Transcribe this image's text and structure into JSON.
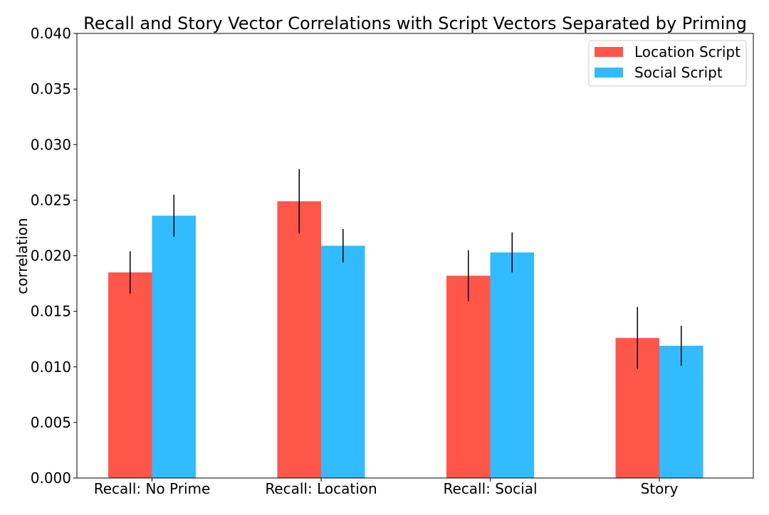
{
  "chart_data": {
    "type": "bar",
    "title": "Recall and Story Vector Correlations with Script Vectors Separated by Priming",
    "xlabel": "",
    "ylabel": "correlation",
    "ylim": [
      0,
      0.04
    ],
    "yticks": [
      0.0,
      0.005,
      0.01,
      0.015,
      0.02,
      0.025,
      0.03,
      0.035,
      0.04
    ],
    "ytick_labels": [
      "0.000",
      "0.005",
      "0.010",
      "0.015",
      "0.020",
      "0.025",
      "0.030",
      "0.035",
      "0.040"
    ],
    "categories": [
      "Recall: No Prime",
      "Recall: Location",
      "Recall: Social",
      "Story"
    ],
    "series": [
      {
        "name": "Location Script",
        "color": "#ff564a",
        "values": [
          0.0185,
          0.0249,
          0.0182,
          0.0126
        ],
        "errors": [
          0.0019,
          0.0029,
          0.0023,
          0.0028
        ]
      },
      {
        "name": "Social Script",
        "color": "#33bbff",
        "values": [
          0.0236,
          0.0209,
          0.0203,
          0.0119
        ],
        "errors": [
          0.0019,
          0.0015,
          0.0018,
          0.0018
        ]
      }
    ],
    "legend_position": "top-right",
    "grid": false,
    "error_bar_color": "#000000"
  }
}
